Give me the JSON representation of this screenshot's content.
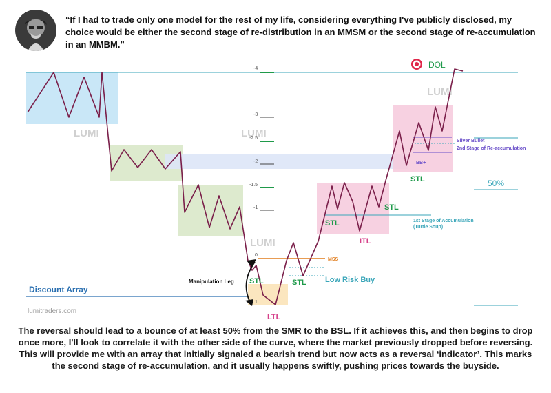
{
  "quote": "“If I had to trade only one model for the rest of my life, considering everything I've publicly disclosed, my choice would be either the second stage of re-distribution in an MMSM or the second stage of re-accumulation in an MMBM.”",
  "caption": "The reversal should lead to a bounce of at least 50% from the SMR to the BSL. If it achieves this, and then begins to drop once more, I'll look to correlate it with the other side of the curve, where the market previously dropped before reversing. This will provide me with an array that initially signaled a bearish trend but now acts as a reversal ‘indicator’. This marks the second stage of re-accumulation, and it usually happens swiftly, pushing prices towards the buyside.",
  "watermark": "lumitraders.com",
  "logo_text": "LUMI",
  "colors": {
    "price_line": "#7a1f4a",
    "blue_box": "#bfe3f6",
    "green_box": "#d9e8c9",
    "pink_box": "#f6c9dc",
    "orange_box": "#fbe3b8",
    "band": "#dde6f7",
    "teal_line": "#3aa6b9",
    "discount_line": "#2a6fb0",
    "stl_green": "#1f9a4a",
    "ltl_pink": "#d6408a",
    "mss_orange": "#e07b1a",
    "purple_text": "#6a4fc9",
    "dol_red": "#e0284a"
  },
  "chart_data": {
    "type": "line",
    "title": "",
    "axis_ticks": [
      "-4",
      "-3",
      "-2.5",
      "-2",
      "-1.5",
      "-1",
      "0",
      "1"
    ],
    "labels": {
      "dol": "DOL",
      "fifty_percent": "50%",
      "silver_bullet": "Silver Bullet",
      "second_stage": "2nd Stage of Re-accumulation",
      "bb": "BB+",
      "first_stage": "1st Stage of Accumulation",
      "turtle_soup": "(Turtle Soup)",
      "mss": "MSS",
      "low_risk_buy": "Low Risk Buy",
      "manipulation_leg": "Manipulation Leg",
      "discount_array": "Discount Array",
      "stl": "STL",
      "itl": "ITL",
      "ltl": "LTL"
    }
  }
}
